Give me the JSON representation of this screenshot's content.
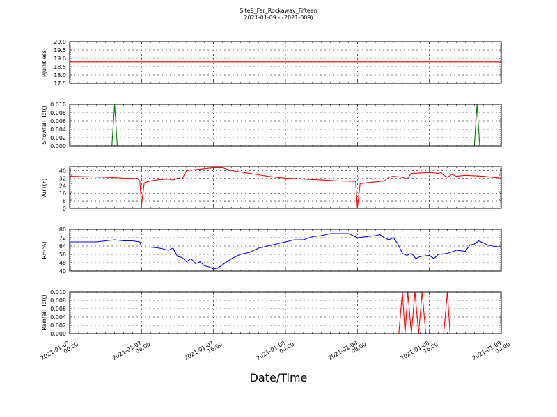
{
  "title": "Site9_Far_Rockaway_Fifteen",
  "subtitle": "2021-01-09 - (2021-009)",
  "xlabel": "Date/Time",
  "colors": {
    "red": "#ff0000",
    "green": "#007f00",
    "blue": "#0000ff",
    "grid": "#000000"
  },
  "x_ticks": [
    {
      "hours": 0,
      "line1": "2021-01-07",
      "line2": "00:00"
    },
    {
      "hours": 8,
      "line1": "2021-01-07",
      "line2": "08:00"
    },
    {
      "hours": 16,
      "line1": "2021-01-07",
      "line2": "16:00"
    },
    {
      "hours": 24,
      "line1": "2021-01-08",
      "line2": "00:00"
    },
    {
      "hours": 32,
      "line1": "2021-01-08",
      "line2": "08:00"
    },
    {
      "hours": 40,
      "line1": "2021-01-08",
      "line2": "16:00"
    },
    {
      "hours": 48,
      "line1": "2021-01-09",
      "line2": "00:00"
    }
  ],
  "chart_data": [
    {
      "type": "line",
      "ylabel": "P(unitless)",
      "ylim": [
        17.5,
        20.0
      ],
      "yticks": [
        "17.5",
        "18.0",
        "18.5",
        "19.0",
        "19.5",
        "20.0"
      ],
      "color": "#ff0000",
      "grid": true,
      "x_unit": "hours since 2021-01-07 00:00",
      "series": [
        {
          "x": [
            0,
            48
          ],
          "y": [
            18.8,
            18.8
          ]
        }
      ]
    },
    {
      "type": "line",
      "ylabel": "Snowfall_Tot()",
      "ylim": [
        0,
        0.01
      ],
      "yticks": [
        "0.000",
        "0.002",
        "0.004",
        "0.006",
        "0.008",
        "0.010"
      ],
      "color": "#007f00",
      "grid": true,
      "series": [
        {
          "x": [
            0,
            4.7,
            5.0,
            5.3,
            45.0,
            45.3,
            45.6,
            48
          ],
          "y": [
            0,
            0,
            0.01,
            0,
            0,
            0.01,
            0,
            0
          ]
        }
      ]
    },
    {
      "type": "line",
      "ylabel": "AirT(F)",
      "ylim": [
        0,
        44
      ],
      "yticks": [
        "0",
        "8",
        "16",
        "24",
        "32",
        "40"
      ],
      "color": "#ff0000",
      "grid": true,
      "series": [
        {
          "x": [
            0,
            2,
            4,
            6,
            7.5,
            7.8,
            8.0,
            8.3,
            8.6,
            9,
            10,
            11,
            11.5,
            12,
            12.5,
            13,
            14,
            15,
            16,
            17,
            18,
            20,
            22,
            24,
            26,
            28,
            30,
            31.8,
            32.0,
            32.3,
            33,
            34,
            35,
            35.5,
            36,
            37,
            37.5,
            38,
            39,
            40,
            41,
            41.3,
            41.6,
            42,
            42.5,
            43,
            44,
            46,
            48
          ],
          "y": [
            34,
            33.5,
            33,
            32,
            31.5,
            29,
            4,
            27,
            28,
            29,
            30.5,
            31,
            30,
            32,
            31,
            40,
            41,
            42,
            43,
            43,
            40,
            37,
            34,
            32,
            31,
            30,
            29,
            28.5,
            0,
            26,
            27,
            28,
            29,
            33,
            34,
            33,
            31,
            37,
            37.5,
            38,
            37,
            38,
            35,
            33,
            36,
            34,
            35,
            34,
            32
          ]
        }
      ]
    },
    {
      "type": "line",
      "ylabel": "RH(%)",
      "ylim": [
        40,
        80
      ],
      "yticks": [
        "40",
        "48",
        "56",
        "64",
        "72",
        "80"
      ],
      "color": "#0000ff",
      "grid": true,
      "series": [
        {
          "x": [
            0,
            1,
            2,
            3,
            4,
            5,
            6,
            7,
            7.8,
            8,
            9,
            10,
            11,
            11.5,
            12,
            12.5,
            13,
            13.5,
            14,
            14.5,
            15,
            15.5,
            16,
            16.5,
            17,
            18,
            19,
            20,
            21,
            22,
            23,
            24,
            25,
            26,
            27,
            28,
            29,
            30,
            31,
            32,
            33,
            34,
            34.5,
            35,
            35.5,
            36,
            36.5,
            37,
            37.5,
            38,
            38.5,
            39,
            40,
            40.5,
            41,
            42,
            43,
            44,
            44.5,
            45,
            45.5,
            46,
            46.5,
            47,
            48
          ],
          "y": [
            68,
            68,
            68,
            68,
            69,
            70,
            69,
            69,
            68,
            63,
            63,
            62,
            60,
            62,
            54,
            53,
            49,
            52,
            47,
            49,
            45,
            44,
            42,
            43,
            46,
            52,
            56,
            58,
            62,
            64,
            66,
            68,
            70,
            70,
            73,
            74,
            76,
            76,
            76,
            72,
            73,
            74,
            75,
            72,
            70,
            72,
            66,
            57,
            55,
            57,
            52,
            54,
            55,
            52,
            56,
            57,
            60,
            59,
            65,
            66,
            69,
            67,
            65,
            64,
            63
          ]
        }
      ]
    },
    {
      "type": "line",
      "ylabel": "Rainfall_Tot()",
      "ylim": [
        0,
        0.01
      ],
      "yticks": [
        "0.000",
        "0.002",
        "0.004",
        "0.006",
        "0.008",
        "0.010"
      ],
      "color": "#ff0000",
      "grid": true,
      "series": [
        {
          "x": [
            0,
            36.6,
            37.0,
            37.3,
            37.6,
            38.0,
            38.4,
            38.8,
            39.2,
            39.6,
            41.6,
            42.0,
            42.3,
            48
          ],
          "y": [
            0,
            0,
            0.01,
            0,
            0.01,
            0,
            0.01,
            0,
            0.01,
            0,
            0,
            0.01,
            0,
            0
          ]
        }
      ]
    }
  ]
}
